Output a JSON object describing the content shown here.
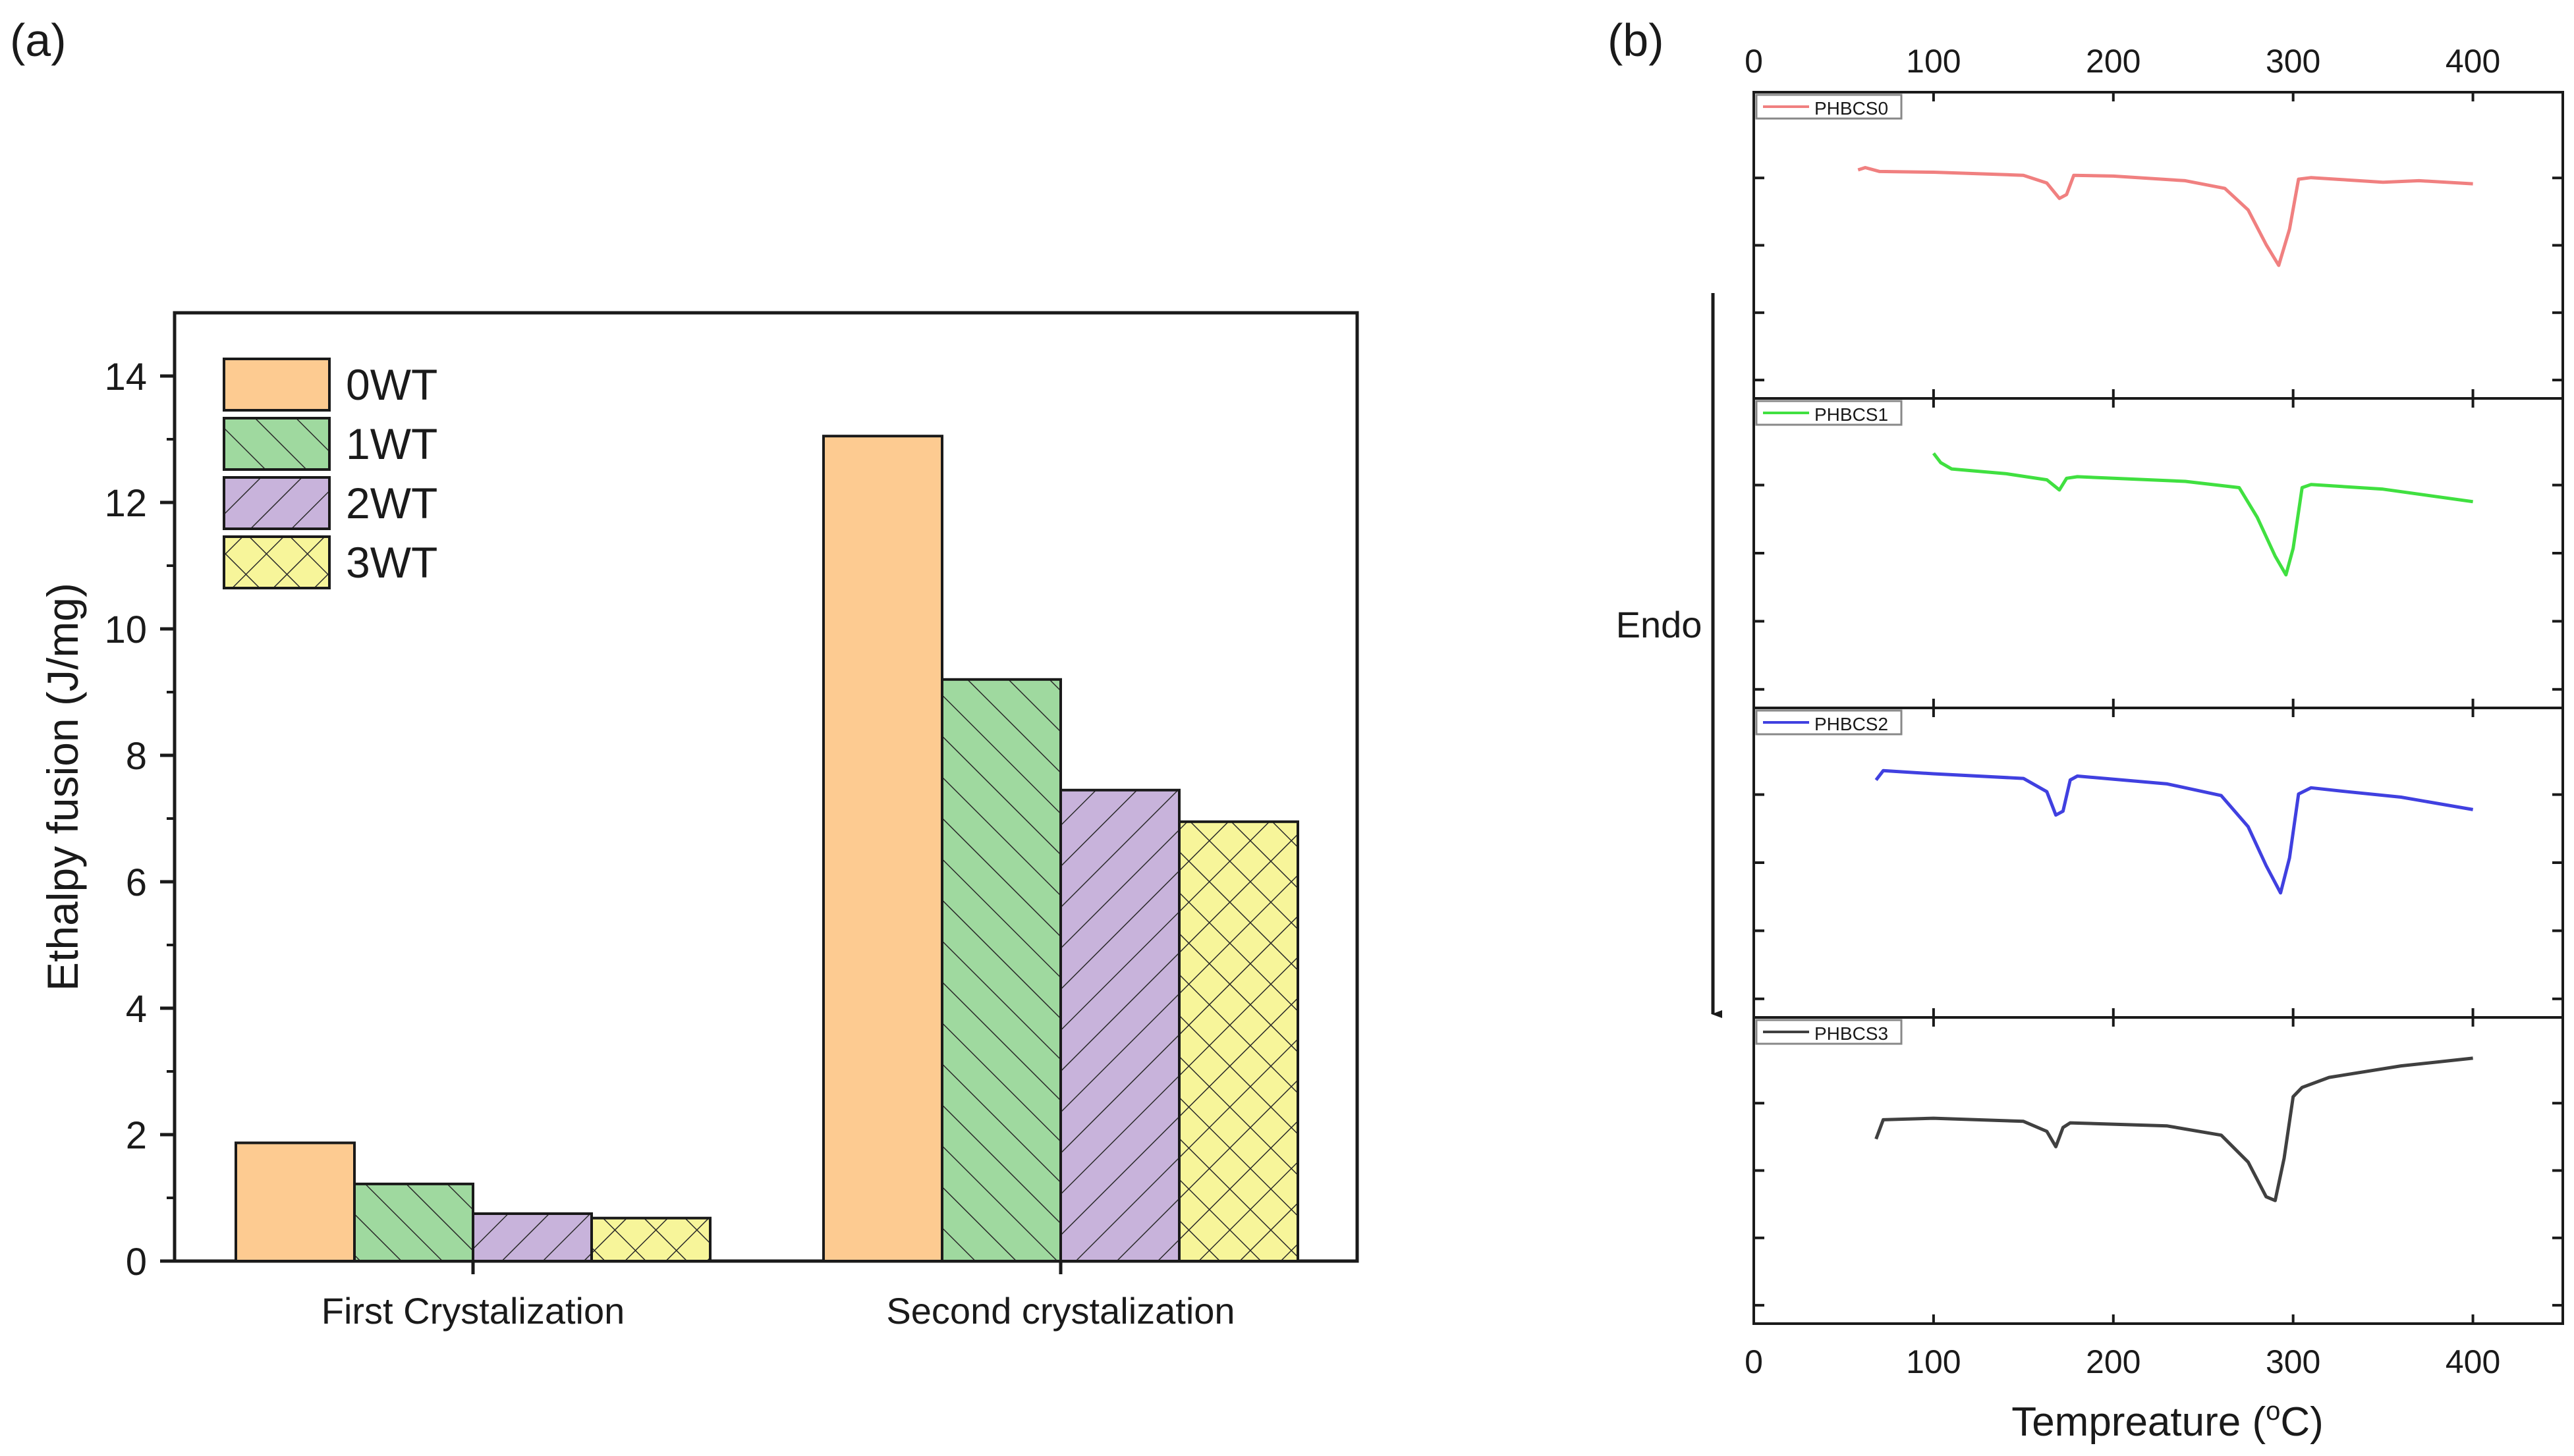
{
  "chart_data": [
    {
      "panel_label": "(a)",
      "type": "bar",
      "title": "",
      "xlabel": "",
      "ylabel": "Ethalpy fusion (J/mg)",
      "ylim": [
        0,
        15
      ],
      "yticks": [
        0,
        2,
        4,
        6,
        8,
        10,
        12,
        14
      ],
      "categories": [
        "First Crystalization",
        "Second crystalization"
      ],
      "legend_position": "top-left",
      "series": [
        {
          "name": "0WT",
          "values": [
            1.87,
            13.05
          ],
          "color": "#FDCB91",
          "pattern": "solid"
        },
        {
          "name": "1WT",
          "values": [
            1.22,
            9.2
          ],
          "color": "#9FD99F",
          "pattern": "hatch-right"
        },
        {
          "name": "2WT",
          "values": [
            0.75,
            7.45
          ],
          "color": "#C8B3DB",
          "pattern": "hatch-left"
        },
        {
          "name": "3WT",
          "values": [
            0.68,
            6.95
          ],
          "color": "#F7F59A",
          "pattern": "crosshatch"
        }
      ]
    },
    {
      "panel_label": "(b)",
      "type": "line",
      "title": "",
      "xlabel": "Tempreature (",
      "xlabel_sup": "o",
      "xlabel_suffix": "C)",
      "xlim": [
        0,
        450
      ],
      "xticks": [
        0,
        100,
        200,
        300,
        400
      ],
      "annotation": "Endo",
      "panels": [
        {
          "name": "PHBCS0",
          "color": "#F08080",
          "x": [
            58,
            62,
            70,
            100,
            150,
            163,
            170,
            174,
            178,
            200,
            240,
            262,
            275,
            285,
            292,
            298,
            303,
            310,
            330,
            350,
            370,
            400
          ],
          "y": [
            0.52,
            0.55,
            0.5,
            0.49,
            0.45,
            0.35,
            0.15,
            0.2,
            0.45,
            0.44,
            0.38,
            0.28,
            0.0,
            -0.45,
            -0.72,
            -0.25,
            0.4,
            0.42,
            0.39,
            0.36,
            0.38,
            0.34
          ]
        },
        {
          "name": "PHBCS1",
          "color": "#40E040",
          "x": [
            100,
            104,
            110,
            140,
            163,
            170,
            174,
            180,
            200,
            240,
            270,
            280,
            290,
            296,
            300,
            305,
            310,
            350,
            400
          ],
          "y": [
            0.82,
            0.7,
            0.62,
            0.56,
            0.48,
            0.35,
            0.5,
            0.52,
            0.5,
            0.46,
            0.38,
            0.0,
            -0.5,
            -0.74,
            -0.4,
            0.38,
            0.42,
            0.36,
            0.2
          ]
        },
        {
          "name": "PHBCS2",
          "color": "#4040E0",
          "x": [
            68,
            72,
            100,
            150,
            163,
            168,
            172,
            176,
            180,
            230,
            260,
            275,
            285,
            293,
            298,
            303,
            310,
            330,
            360,
            400
          ],
          "y": [
            0.6,
            0.72,
            0.68,
            0.62,
            0.45,
            0.15,
            0.2,
            0.6,
            0.65,
            0.55,
            0.4,
            0.0,
            -0.5,
            -0.85,
            -0.4,
            0.42,
            0.5,
            0.45,
            0.38,
            0.22
          ]
        },
        {
          "name": "PHBCS3",
          "color": "#404040",
          "x": [
            68,
            72,
            100,
            150,
            163,
            168,
            172,
            176,
            230,
            260,
            275,
            285,
            290,
            295,
            300,
            305,
            320,
            360,
            400
          ],
          "y": [
            -0.05,
            0.2,
            0.22,
            0.18,
            0.05,
            -0.15,
            0.1,
            0.16,
            0.12,
            0.0,
            -0.35,
            -0.8,
            -0.85,
            -0.3,
            0.5,
            0.62,
            0.75,
            0.9,
            1.0
          ]
        }
      ]
    }
  ]
}
